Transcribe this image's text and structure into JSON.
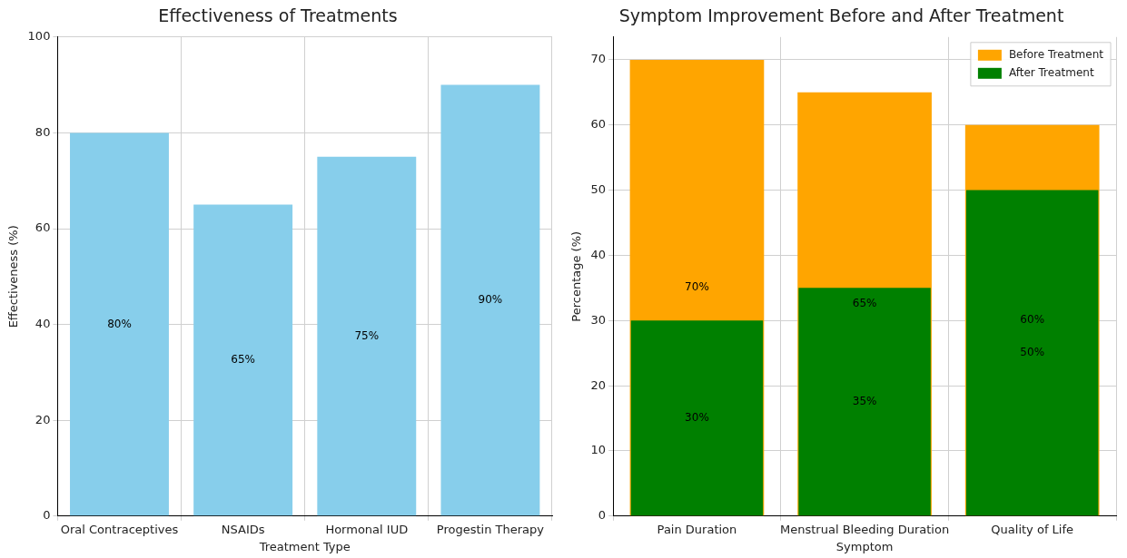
{
  "chart_data": [
    {
      "type": "bar",
      "title": "Effectiveness of Treatments",
      "xlabel": "Treatment Type",
      "ylabel": "Effectiveness (%)",
      "categories": [
        "Oral Contraceptives",
        "NSAIDs",
        "Hormonal IUD",
        "Progestin Therapy"
      ],
      "values": [
        80,
        65,
        75,
        90
      ],
      "color": "#87ceeb",
      "value_labels": [
        "80%",
        "65%",
        "75%",
        "90%"
      ],
      "ylim": [
        0,
        100
      ],
      "yticks": [
        0,
        20,
        40,
        60,
        80,
        100
      ],
      "grid": true
    },
    {
      "type": "bar",
      "title": "Symptom Improvement Before and After Treatment",
      "xlabel": "Symptom",
      "ylabel": "Percentage (%)",
      "categories": [
        "Pain Duration",
        "Menstrual Bleeding Duration",
        "Quality of Life"
      ],
      "series": [
        {
          "name": "Before Treatment",
          "color": "#ffa500",
          "values": [
            70,
            65,
            60
          ],
          "value_labels": [
            "70%",
            "65%",
            "60%"
          ]
        },
        {
          "name": "After Treatment",
          "color": "#008000",
          "values": [
            30,
            35,
            50
          ],
          "value_labels": [
            "30%",
            "35%",
            "50%"
          ]
        }
      ],
      "ylim": [
        0,
        73.5
      ],
      "yticks": [
        0,
        10,
        20,
        30,
        40,
        50,
        60,
        70
      ],
      "grid": true,
      "legend": "top right"
    }
  ]
}
